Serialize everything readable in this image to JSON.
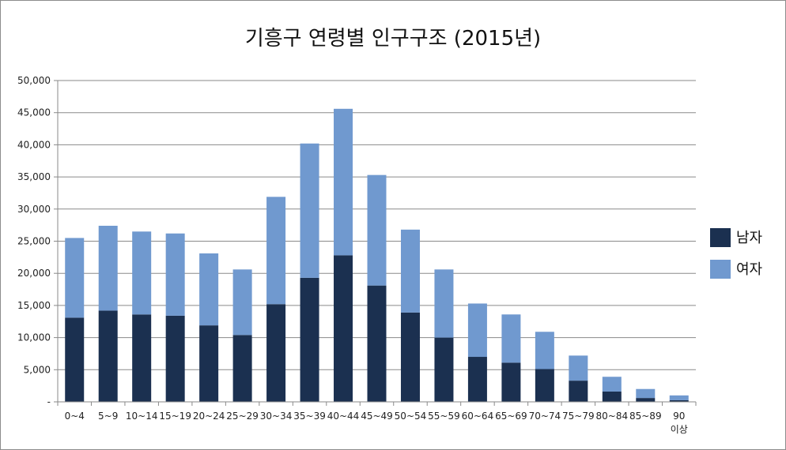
{
  "chart_data": {
    "type": "bar",
    "stacked": true,
    "title": "기흥구 연령별 인구구조 (2015년)",
    "xlabel": "",
    "ylabel": "",
    "ylim": [
      0,
      50000
    ],
    "y_ticks": [
      "-",
      "5,000",
      "10,000",
      "15,000",
      "20,000",
      "25,000",
      "30,000",
      "35,000",
      "40,000",
      "45,000",
      "50,000"
    ],
    "categories": [
      "0~4",
      "5~9",
      "10~14",
      "15~19",
      "20~24",
      "25~29",
      "30~34",
      "35~39",
      "40~44",
      "45~49",
      "50~54",
      "55~59",
      "60~64",
      "65~69",
      "70~74",
      "75~79",
      "80~84",
      "85~89",
      "90\n이상"
    ],
    "series": [
      {
        "name": "남자",
        "color": "#1b3050",
        "values": [
          13100,
          14200,
          13600,
          13400,
          11900,
          10400,
          15200,
          19300,
          22800,
          18100,
          13900,
          10000,
          7000,
          6100,
          5100,
          3300,
          1600,
          600,
          250
        ]
      },
      {
        "name": "여자",
        "color": "#7099cf",
        "values": [
          12400,
          13200,
          12900,
          12800,
          11200,
          10200,
          16700,
          20900,
          22800,
          17200,
          12900,
          10600,
          8300,
          7500,
          5800,
          3900,
          2300,
          1400,
          750
        ]
      }
    ],
    "grid": true,
    "legend_position": "right"
  }
}
